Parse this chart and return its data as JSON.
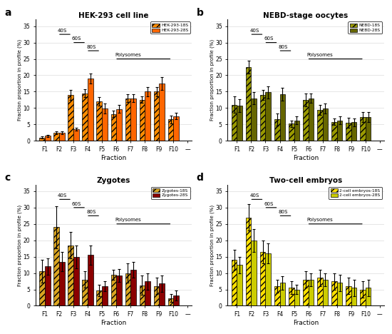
{
  "panels": [
    {
      "label": "a",
      "title": "HEK-293 cell line",
      "legend_labels": [
        "HEK-293-18S",
        "HEK-293-28S"
      ],
      "color_18s": "#FF8C00",
      "color_28s": "#FF6600",
      "hatch_18s": "////",
      "hatch_28s": "",
      "values_18s": [
        1.0,
        2.5,
        14.0,
        14.5,
        12.0,
        8.2,
        13.0,
        12.5,
        15.0,
        6.5
      ],
      "values_28s": [
        1.5,
        2.5,
        3.5,
        19.0,
        9.8,
        9.7,
        13.0,
        15.0,
        17.5,
        7.5
      ],
      "err_18s": [
        0.3,
        0.4,
        1.5,
        1.2,
        1.3,
        1.0,
        1.2,
        1.0,
        1.5,
        1.2
      ],
      "err_28s": [
        0.4,
        0.4,
        0.5,
        1.5,
        1.5,
        1.2,
        1.2,
        1.5,
        2.0,
        1.0
      ],
      "ylim": [
        0,
        37
      ]
    },
    {
      "label": "b",
      "title": "NEBD-stage oocytes",
      "legend_labels": [
        "NEBD-18S",
        "NEBD-28S"
      ],
      "color_18s": "#999900",
      "color_28s": "#666600",
      "hatch_18s": "////",
      "hatch_28s": "",
      "values_18s": [
        11.0,
        22.5,
        14.0,
        6.5,
        5.2,
        12.5,
        9.5,
        5.8,
        5.5,
        7.2
      ],
      "values_28s": [
        10.8,
        13.0,
        14.8,
        14.2,
        6.2,
        13.0,
        9.8,
        6.2,
        5.7,
        7.3
      ],
      "err_18s": [
        2.5,
        2.0,
        1.5,
        1.8,
        1.0,
        2.0,
        1.5,
        1.0,
        1.5,
        1.5
      ],
      "err_28s": [
        2.0,
        1.8,
        1.8,
        2.0,
        1.2,
        1.5,
        1.5,
        1.2,
        1.2,
        1.5
      ],
      "ylim": [
        0,
        37
      ]
    },
    {
      "label": "c",
      "title": "Zygotes",
      "legend_labels": [
        "Zygotes-18S",
        "Zygotes-28S"
      ],
      "color_18s": "#DAA520",
      "color_28s": "#8B0000",
      "hatch_18s": "////",
      "hatch_28s": "",
      "values_18s": [
        10.5,
        24.0,
        18.5,
        8.0,
        4.7,
        9.5,
        10.0,
        6.3,
        6.0,
        2.3
      ],
      "values_28s": [
        12.0,
        13.5,
        15.0,
        15.5,
        6.0,
        9.2,
        11.0,
        7.5,
        6.8,
        3.2
      ],
      "err_18s": [
        3.5,
        6.5,
        4.0,
        2.5,
        1.8,
        1.5,
        3.0,
        3.0,
        2.5,
        1.2
      ],
      "err_28s": [
        2.5,
        3.0,
        3.5,
        3.0,
        1.5,
        2.0,
        2.5,
        2.5,
        2.5,
        1.5
      ],
      "ylim": [
        0,
        37
      ]
    },
    {
      "label": "d",
      "title": "Two-cell embryos",
      "legend_labels": [
        "2-cell embryos-18S",
        "2-cell embryos-28S"
      ],
      "color_18s": "#FFE000",
      "color_28s": "#CCCC00",
      "hatch_18s": "////",
      "hatch_28s": "",
      "values_18s": [
        14.0,
        27.0,
        16.5,
        6.0,
        5.5,
        8.0,
        8.5,
        7.5,
        6.0,
        5.0
      ],
      "values_28s": [
        12.5,
        20.0,
        16.0,
        7.0,
        5.0,
        8.0,
        8.0,
        7.0,
        5.5,
        5.5
      ],
      "err_18s": [
        3.0,
        4.0,
        3.5,
        2.0,
        2.0,
        2.5,
        2.5,
        2.5,
        2.5,
        2.5
      ],
      "err_28s": [
        2.5,
        3.5,
        3.0,
        2.0,
        1.5,
        2.0,
        2.0,
        2.5,
        2.5,
        2.5
      ],
      "ylim": [
        0,
        37
      ]
    }
  ],
  "ylabel": "Fraction proportion in profile (%)",
  "xlabel": "Fraction",
  "bg_color": "#FFFFFF",
  "bar_width": 0.38,
  "yticks": [
    0,
    5,
    10,
    15,
    20,
    25,
    30,
    35
  ]
}
